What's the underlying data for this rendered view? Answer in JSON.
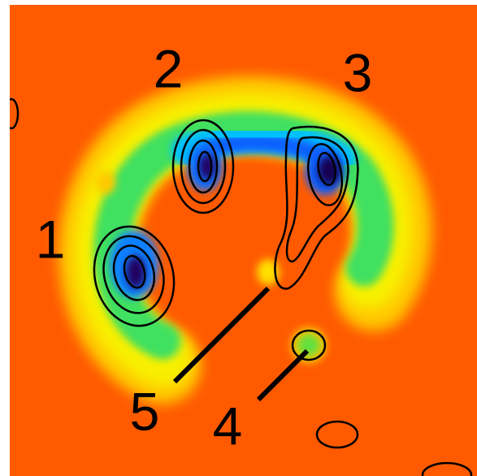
{
  "labels": [
    "1",
    "2",
    "3",
    "4",
    "5"
  ]
}
